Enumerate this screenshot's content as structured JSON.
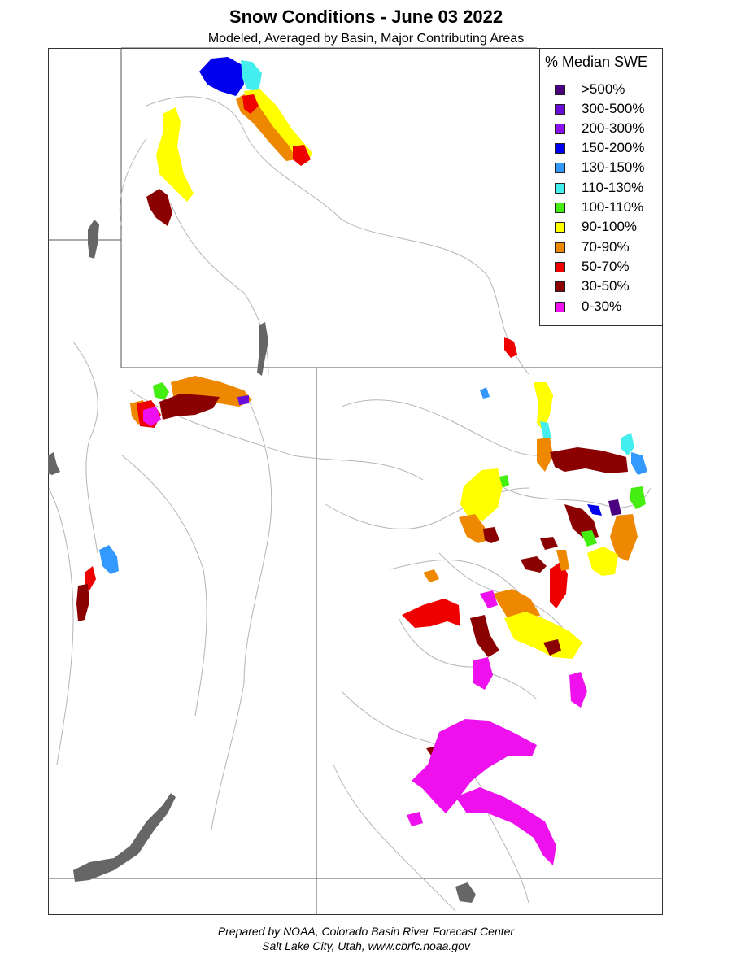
{
  "title": "Snow Conditions - June 03 2022",
  "subtitle": "Modeled, Averaged by Basin, Major Contributing Areas",
  "legend": {
    "title": "% Median SWE",
    "items": [
      {
        "label": ">500%",
        "color": "#4b0082"
      },
      {
        "label": "300-500%",
        "color": "#6a0dd8"
      },
      {
        "label": "200-300%",
        "color": "#8a10f5"
      },
      {
        "label": "150-200%",
        "color": "#0000ee"
      },
      {
        "label": "130-150%",
        "color": "#3399ff"
      },
      {
        "label": "110-130%",
        "color": "#44eeee"
      },
      {
        "label": "100-110%",
        "color": "#44ee11"
      },
      {
        "label": "90-100%",
        "color": "#ffff00"
      },
      {
        "label": "70-90%",
        "color": "#ee8800"
      },
      {
        "label": "50-70%",
        "color": "#ee0000"
      },
      {
        "label": "30-50%",
        "color": "#8b0000"
      },
      {
        "label": "0-30%",
        "color": "#ee11ee"
      }
    ]
  },
  "footer": {
    "line1": "Prepared by NOAA, Colorado Basin River Forecast Center",
    "line2": "Salt Lake City, Utah, www.cbrfc.noaa.gov"
  }
}
